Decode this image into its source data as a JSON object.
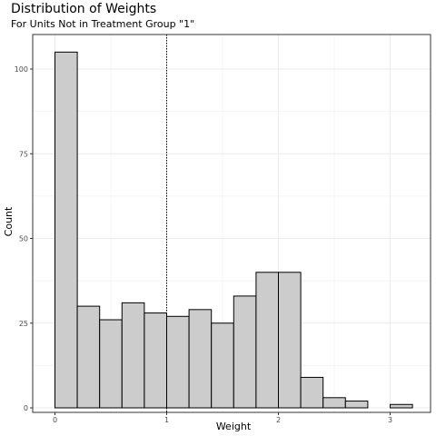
{
  "chart_data": {
    "type": "bar",
    "title": "Distribution of Weights",
    "subtitle": "For Units Not in Treatment Group \"1\"",
    "xlabel": "Weight",
    "ylabel": "Count",
    "xlim": [
      -0.2,
      3.35
    ],
    "ylim": [
      0,
      110
    ],
    "x_ticks": [
      0,
      1,
      2,
      3
    ],
    "y_ticks": [
      0,
      25,
      50,
      75,
      100
    ],
    "bin_width": 0.2,
    "bins": [
      {
        "start": 0.0,
        "end": 0.2,
        "count": 105
      },
      {
        "start": 0.2,
        "end": 0.4,
        "count": 30
      },
      {
        "start": 0.4,
        "end": 0.6,
        "count": 26
      },
      {
        "start": 0.6,
        "end": 0.8,
        "count": 31
      },
      {
        "start": 0.8,
        "end": 1.0,
        "count": 28
      },
      {
        "start": 1.0,
        "end": 1.2,
        "count": 27
      },
      {
        "start": 1.2,
        "end": 1.4,
        "count": 29
      },
      {
        "start": 1.4,
        "end": 1.6,
        "count": 25
      },
      {
        "start": 1.6,
        "end": 1.8,
        "count": 33
      },
      {
        "start": 1.8,
        "end": 2.0,
        "count": 40
      },
      {
        "start": 2.0,
        "end": 2.2,
        "count": 40
      },
      {
        "start": 2.2,
        "end": 2.4,
        "count": 9
      },
      {
        "start": 2.4,
        "end": 2.6,
        "count": 3
      },
      {
        "start": 2.6,
        "end": 2.8,
        "count": 2
      },
      {
        "start": 3.0,
        "end": 3.2,
        "count": 1
      }
    ],
    "reference_line": {
      "x": 1,
      "style": "dotted"
    },
    "grid": true,
    "legend": "none",
    "colors": {
      "bar_fill": "#cccccc",
      "bar_stroke": "#000000",
      "grid": "#ebebeb",
      "panel_border": "#333333",
      "tick_text": "#4d4d4d"
    }
  }
}
